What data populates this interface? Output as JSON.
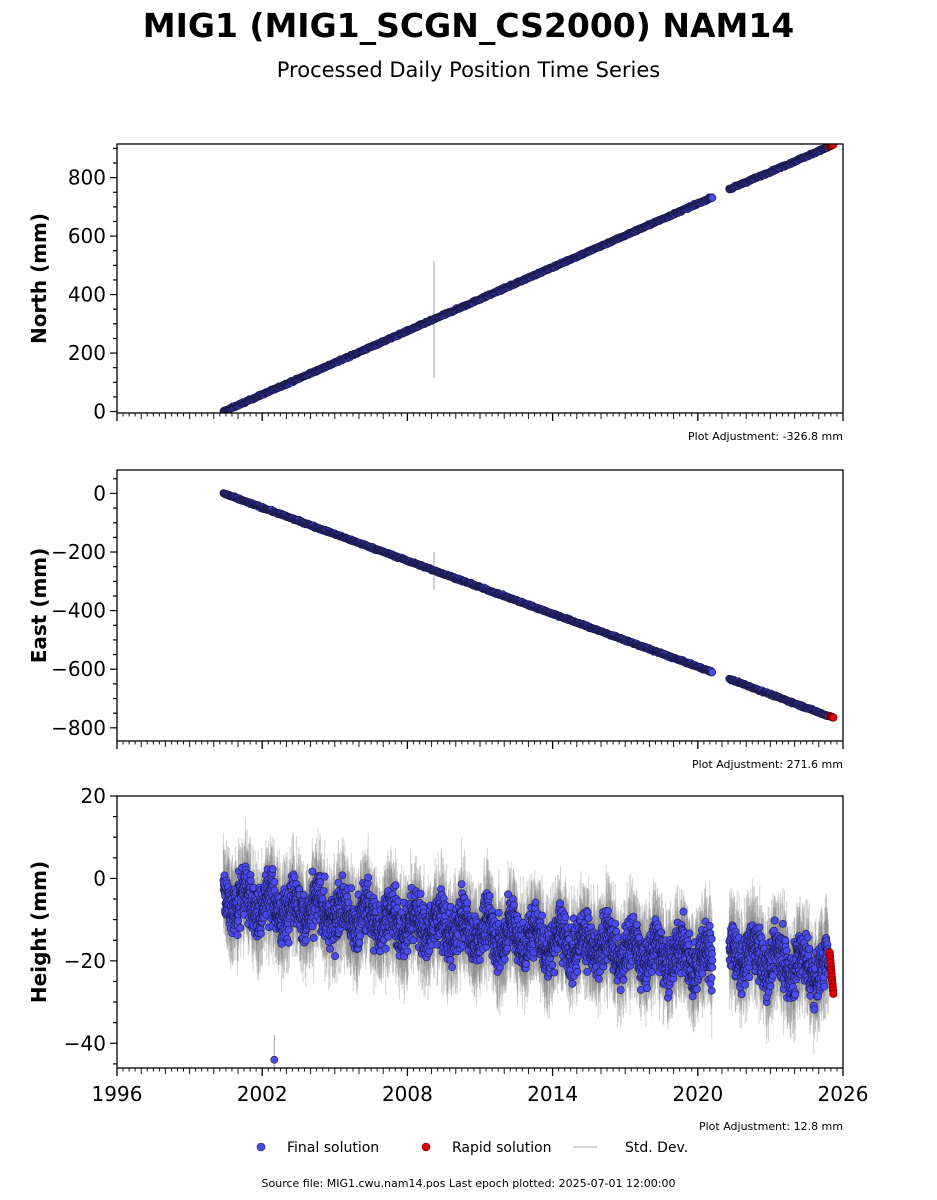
{
  "title": "MIG1 (MIG1_SCGN_CS2000) NAM14",
  "subtitle": "Processed Daily Position Time Series",
  "footer": "Source file: MIG1.cwu.nam14.pos  Last epoch plotted: 2025-07-01 12:00:00",
  "colors": {
    "final": "#4a4af0",
    "rapid": "#e00000",
    "stddev": "#b0b0b0",
    "edge": "#1a1a4a"
  },
  "legend": {
    "position": "bottom-center",
    "items": [
      {
        "label": "Final solution",
        "marker": "dot",
        "color": "#4a4af0"
      },
      {
        "label": "Rapid solution",
        "marker": "dot",
        "color": "#e00000"
      },
      {
        "label": "Std. Dev.",
        "marker": "line",
        "color": "#c8c8c8"
      }
    ]
  },
  "chart_data": [
    {
      "type": "scatter",
      "ylabel": "North (mm)",
      "xlim": [
        1996,
        2026
      ],
      "ylim": [
        -5,
        915
      ],
      "yticks": [
        0,
        200,
        400,
        600,
        800
      ],
      "xticks": [
        1996,
        2002,
        2008,
        2014,
        2020,
        2026
      ],
      "show_xtick_labels": false,
      "adjustment": "Plot Adjustment: -326.8 mm",
      "series": [
        {
          "kind": "final",
          "segments": [
            {
              "x": [
                2000.4,
                2020.6
              ],
              "y": [
                0,
                733
              ]
            },
            {
              "x": [
                2021.3,
                2025.4
              ],
              "y": [
                760,
                905
              ]
            }
          ],
          "noise": 3
        },
        {
          "kind": "rapid",
          "x": [
            2025.45,
            2025.6
          ],
          "y": [
            907,
            913
          ]
        }
      ],
      "outliers": [
        {
          "x": 2009.1,
          "y": 315,
          "err": 200
        }
      ]
    },
    {
      "type": "scatter",
      "ylabel": "East (mm)",
      "xlim": [
        1996,
        2026
      ],
      "ylim": [
        -845,
        80
      ],
      "yticks": [
        -800,
        -600,
        -400,
        -200,
        0
      ],
      "xticks": [
        1996,
        2002,
        2008,
        2014,
        2020,
        2026
      ],
      "show_xtick_labels": false,
      "adjustment": "Plot Adjustment: 271.6 mm",
      "series": [
        {
          "kind": "final",
          "segments": [
            {
              "x": [
                2000.4,
                2020.6
              ],
              "y": [
                0,
                -610
              ]
            },
            {
              "x": [
                2021.3,
                2025.4
              ],
              "y": [
                -633,
                -760
              ]
            }
          ],
          "noise": 3
        },
        {
          "kind": "rapid",
          "x": [
            2025.45,
            2025.6
          ],
          "y": [
            -760,
            -765
          ]
        }
      ],
      "outliers": [
        {
          "x": 2009.1,
          "y": -265,
          "err": 65
        }
      ]
    },
    {
      "type": "scatter",
      "ylabel": "Height (mm)",
      "xlim": [
        1996,
        2026
      ],
      "ylim": [
        -46,
        20
      ],
      "yticks": [
        -40,
        -20,
        0,
        20
      ],
      "xticks": [
        1996,
        2002,
        2008,
        2014,
        2020,
        2026
      ],
      "xticklabels": [
        "1996",
        "2002",
        "2008",
        "2014",
        "2020",
        "2026"
      ],
      "show_xtick_labels": true,
      "adjustment": "Plot Adjustment: 12.8 mm",
      "series": [
        {
          "kind": "final",
          "segments": [
            {
              "x": [
                2000.4,
                2020.6
              ],
              "y": [
                -5,
                -20
              ]
            },
            {
              "x": [
                2021.3,
                2025.4
              ],
              "y": [
                -18,
                -22
              ]
            }
          ],
          "noise": 6
        },
        {
          "kind": "rapid",
          "x": [
            2025.45,
            2025.6
          ],
          "y": [
            -18,
            -28
          ]
        }
      ],
      "outliers": [
        {
          "x": 2002.5,
          "y": -44,
          "err": 6
        }
      ]
    }
  ]
}
